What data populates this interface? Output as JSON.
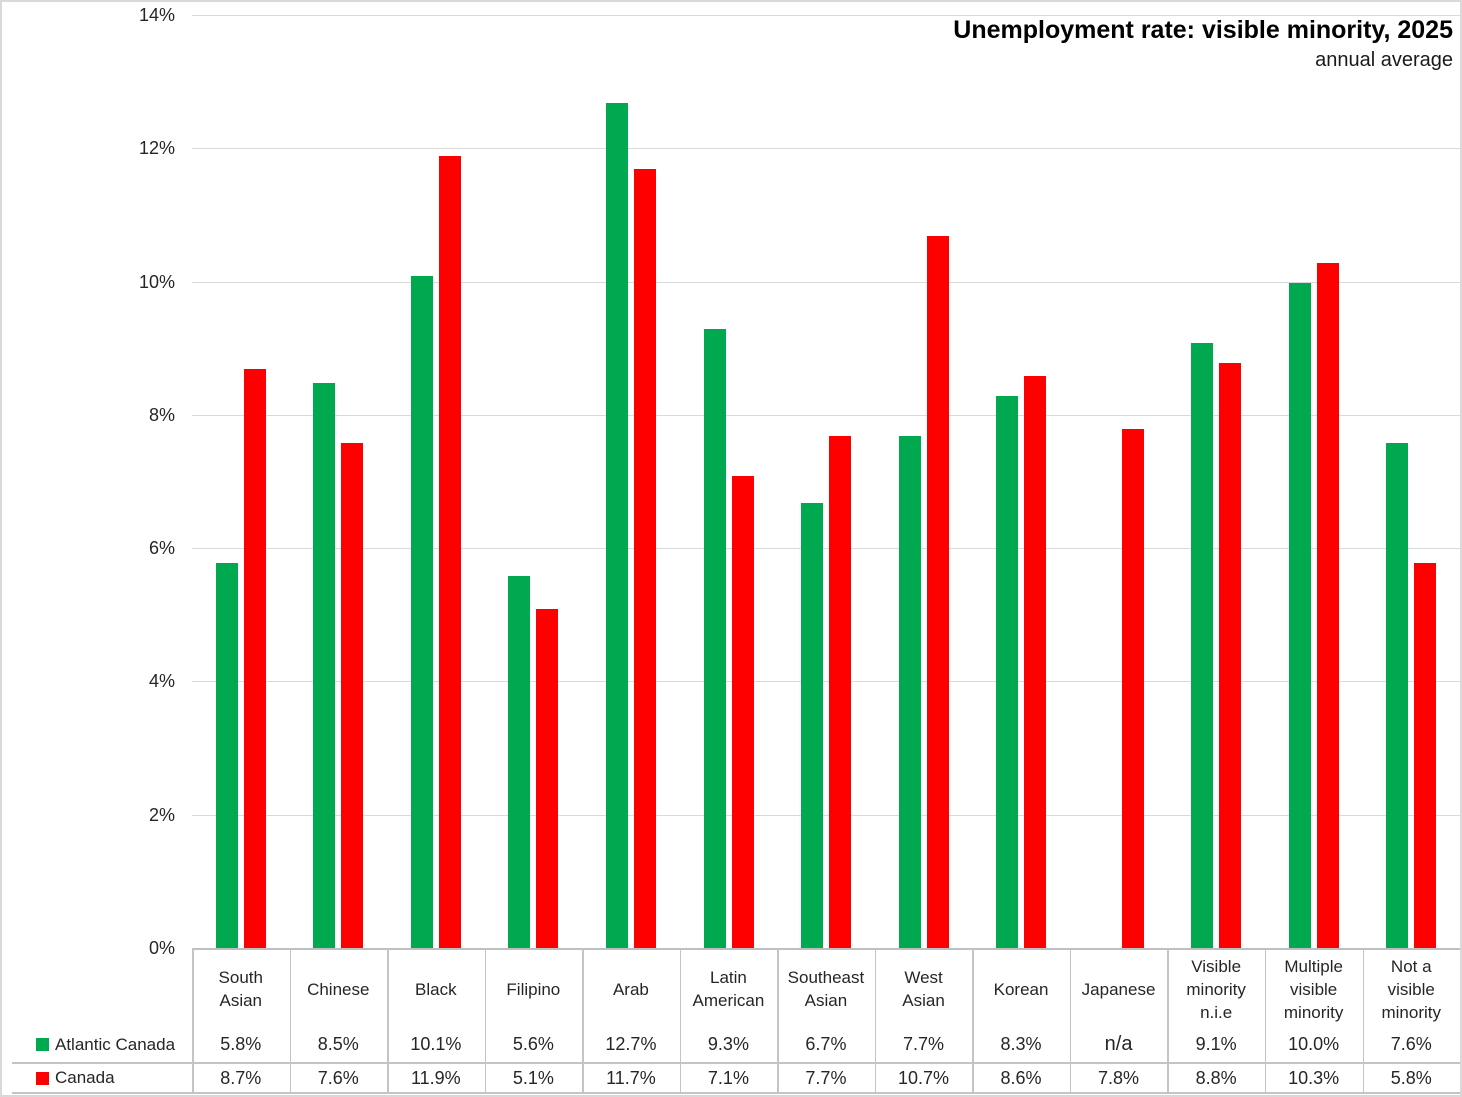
{
  "chart_data": {
    "type": "bar",
    "title": "Unemployment rate: visible minority, 2025",
    "subtitle": "annual average",
    "categories": [
      "South Asian",
      "Chinese",
      "Black",
      "Filipino",
      "Arab",
      "Latin American",
      "Southeast Asian",
      "West Asian",
      "Korean",
      "Japanese",
      "Visible minority n.i.e",
      "Multiple visible minority",
      "Not a visible minority"
    ],
    "series": [
      {
        "name": "Atlantic Canada",
        "color": "#00A950",
        "values": [
          5.8,
          8.5,
          10.1,
          5.6,
          12.7,
          9.3,
          6.7,
          7.7,
          8.3,
          null,
          9.1,
          10.0,
          7.6
        ],
        "labels": [
          "5.8%",
          "8.5%",
          "10.1%",
          "5.6%",
          "12.7%",
          "9.3%",
          "6.7%",
          "7.7%",
          "8.3%",
          "n/a",
          "9.1%",
          "10.0%",
          "7.6%"
        ]
      },
      {
        "name": "Canada",
        "color": "#FF0000",
        "values": [
          8.7,
          7.6,
          11.9,
          5.1,
          11.7,
          7.1,
          7.7,
          10.7,
          8.6,
          7.8,
          8.8,
          10.3,
          5.8
        ],
        "labels": [
          "8.7%",
          "7.6%",
          "11.9%",
          "5.1%",
          "11.7%",
          "7.1%",
          "7.7%",
          "10.7%",
          "8.6%",
          "7.8%",
          "8.8%",
          "10.3%",
          "5.8%"
        ]
      }
    ],
    "ylim": [
      0,
      14
    ],
    "y_tick_step": 2,
    "y_tick_labels": [
      "0%",
      "2%",
      "4%",
      "6%",
      "8%",
      "10%",
      "12%",
      "14%"
    ],
    "grid": true,
    "legend_position": "bottom-left-data-table"
  },
  "colors": {
    "atlantic_canada": "#00A950",
    "canada": "#FF0000",
    "gridline": "#D9D9D9",
    "axis_line": "#BFBFBF",
    "table_line": "#C4C4C4",
    "text": "#262626",
    "title_text": "#000000"
  }
}
